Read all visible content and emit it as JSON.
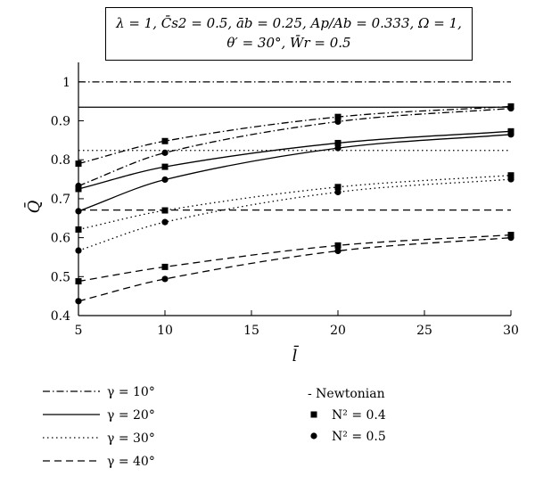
{
  "param_box": {
    "line1": "λ = 1, C̄s2 = 0.5, āb = 0.25, Ap/Ab = 0.333, Ω = 1,",
    "line2": "θ′ = 30°, W̄r = 0.5"
  },
  "chart_data": {
    "type": "line",
    "xlabel": "l̄",
    "ylabel": "Q̄",
    "xlim": [
      5,
      30
    ],
    "ylim": [
      0.4,
      1.05
    ],
    "xticks": [
      5,
      10,
      15,
      20,
      25,
      30
    ],
    "yticks": [
      0.4,
      0.5,
      0.6,
      0.7,
      0.8,
      0.9,
      1.0
    ],
    "yticklabels": [
      "0.4",
      "0.5",
      "0.6",
      "0.7",
      "0.8",
      "0.9",
      "1"
    ],
    "xticklabels": [
      "5",
      "10",
      "15",
      "20",
      "25",
      "30"
    ],
    "grid": false,
    "x": [
      5,
      10,
      20,
      30
    ],
    "series": [
      {
        "name": "γ = 10°",
        "dash": "dashdot",
        "model": "Newtonian",
        "values": [
          1.0,
          1.0,
          1.0,
          1.0
        ]
      },
      {
        "name": "γ = 10°",
        "dash": "dashdot",
        "model": "N2 = 0.4",
        "values": [
          0.79,
          0.848,
          0.91,
          0.937
        ]
      },
      {
        "name": "γ = 10°",
        "dash": "dashdot",
        "model": "N2 = 0.5",
        "values": [
          0.733,
          0.818,
          0.898,
          0.932
        ]
      },
      {
        "name": "γ = 20°",
        "dash": "solid",
        "model": "Newtonian",
        "values": [
          0.935,
          0.935,
          0.935,
          0.935
        ]
      },
      {
        "name": "γ = 20°",
        "dash": "solid",
        "model": "N2 = 0.4",
        "values": [
          0.725,
          0.782,
          0.843,
          0.873
        ]
      },
      {
        "name": "γ = 20°",
        "dash": "solid",
        "model": "N2 = 0.5",
        "values": [
          0.668,
          0.749,
          0.83,
          0.865
        ]
      },
      {
        "name": "γ = 30°",
        "dash": "dotted",
        "model": "Newtonian",
        "values": [
          0.824,
          0.824,
          0.824,
          0.824
        ]
      },
      {
        "name": "γ = 30°",
        "dash": "dotted",
        "model": "N2 = 0.4",
        "values": [
          0.621,
          0.67,
          0.73,
          0.76
        ]
      },
      {
        "name": "γ = 30°",
        "dash": "dotted",
        "model": "N2 = 0.5",
        "values": [
          0.567,
          0.64,
          0.717,
          0.75
        ]
      },
      {
        "name": "γ = 40°",
        "dash": "dashed",
        "model": "Newtonian",
        "values": [
          0.671,
          0.671,
          0.671,
          0.671
        ]
      },
      {
        "name": "γ = 40°",
        "dash": "dashed",
        "model": "N2 = 0.4",
        "values": [
          0.488,
          0.525,
          0.58,
          0.607
        ]
      },
      {
        "name": "γ = 40°",
        "dash": "dashed",
        "model": "N2 = 0.5",
        "values": [
          0.437,
          0.494,
          0.566,
          0.6
        ]
      }
    ],
    "legend": {
      "line_entries": [
        {
          "label": "γ = 10°",
          "dash": "dashdot"
        },
        {
          "label": "γ = 20°",
          "dash": "solid"
        },
        {
          "label": "γ = 30°",
          "dash": "dotted"
        },
        {
          "label": "γ = 40°",
          "dash": "dashed"
        }
      ],
      "marker_entries": [
        {
          "label": "- Newtonian",
          "marker": "none"
        },
        {
          "label": "N² = 0.4",
          "marker": "square"
        },
        {
          "label": "N² = 0.5",
          "marker": "circle"
        }
      ],
      "placement": "bottom"
    }
  }
}
